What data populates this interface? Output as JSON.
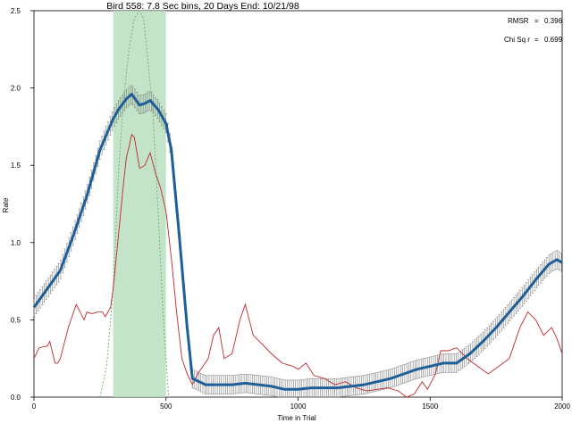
{
  "chart_data": {
    "type": "line",
    "title": "Bird 558: 7.8 Sec bins, 20 Days End: 10/21/98",
    "xlabel": "Time in Trial",
    "ylabel": "Rate",
    "xlim": [
      0,
      2000
    ],
    "ylim": [
      0,
      2.5
    ],
    "xticks": [
      0,
      500,
      1000,
      1500,
      2000
    ],
    "xtick_labels": [
      "0",
      "500",
      "1000",
      "1500",
      "2000"
    ],
    "yticks": [
      0.0,
      0.5,
      1.0,
      1.5,
      2.0,
      2.5
    ],
    "ytick_labels": [
      "0.0",
      "0.5",
      "1.0",
      "1.5",
      "2.0",
      "2.5"
    ],
    "shaded_region": {
      "x": [
        300,
        500
      ],
      "color": "#b8dfbe"
    },
    "stats": [
      {
        "label": "RMSR",
        "value": "0.396"
      },
      {
        "label": "Chi Sq r",
        "value": "0.699"
      }
    ],
    "series": [
      {
        "role": "mean",
        "color": "#1f5f99",
        "x": [
          0,
          50,
          100,
          150,
          200,
          250,
          300,
          320,
          350,
          370,
          400,
          420,
          440,
          470,
          500,
          520,
          550,
          580,
          600,
          650,
          700,
          750,
          800,
          850,
          900,
          950,
          1000,
          1050,
          1100,
          1150,
          1200,
          1250,
          1300,
          1350,
          1400,
          1450,
          1500,
          1550,
          1600,
          1650,
          1700,
          1750,
          1800,
          1850,
          1900,
          1950,
          1980,
          2000
        ],
        "y": [
          0.58,
          0.7,
          0.82,
          1.05,
          1.3,
          1.6,
          1.8,
          1.86,
          1.93,
          1.96,
          1.89,
          1.9,
          1.92,
          1.86,
          1.77,
          1.6,
          1.05,
          0.45,
          0.12,
          0.08,
          0.08,
          0.08,
          0.09,
          0.08,
          0.07,
          0.05,
          0.05,
          0.06,
          0.06,
          0.06,
          0.07,
          0.08,
          0.1,
          0.12,
          0.15,
          0.18,
          0.2,
          0.22,
          0.22,
          0.28,
          0.36,
          0.45,
          0.55,
          0.65,
          0.76,
          0.86,
          0.89,
          0.87
        ],
        "err": 0.06
      },
      {
        "role": "other",
        "color": "#c0272d",
        "x": [
          0,
          20,
          50,
          60,
          80,
          90,
          100,
          130,
          160,
          190,
          200,
          220,
          240,
          260,
          270,
          290,
          300,
          320,
          340,
          350,
          360,
          370,
          380,
          400,
          420,
          440,
          460,
          470,
          480,
          500,
          520,
          540,
          560,
          580,
          600,
          620,
          640,
          660,
          680,
          700,
          720,
          750,
          780,
          800,
          830,
          860,
          900,
          940,
          980,
          1000,
          1030,
          1060,
          1100,
          1140,
          1180,
          1220,
          1260,
          1300,
          1340,
          1380,
          1410,
          1440,
          1470,
          1490,
          1520,
          1540,
          1570,
          1600,
          1640,
          1680,
          1720,
          1760,
          1800,
          1840,
          1870,
          1900,
          1930,
          1960,
          1980,
          2000
        ],
        "y": [
          0.25,
          0.32,
          0.33,
          0.36,
          0.22,
          0.22,
          0.25,
          0.45,
          0.6,
          0.5,
          0.55,
          0.54,
          0.55,
          0.55,
          0.52,
          0.58,
          0.7,
          1.05,
          1.4,
          1.55,
          1.62,
          1.7,
          1.68,
          1.48,
          1.5,
          1.58,
          1.45,
          1.4,
          1.35,
          1.2,
          0.9,
          0.55,
          0.25,
          0.15,
          0.08,
          0.15,
          0.2,
          0.25,
          0.4,
          0.45,
          0.25,
          0.28,
          0.5,
          0.6,
          0.4,
          0.35,
          0.28,
          0.22,
          0.2,
          0.18,
          0.22,
          0.14,
          0.12,
          0.08,
          0.1,
          0.06,
          0.04,
          0.05,
          0.06,
          0.04,
          -0.05,
          0.02,
          0.1,
          0.05,
          0.15,
          0.3,
          0.3,
          0.32,
          0.25,
          0.2,
          0.15,
          0.2,
          0.25,
          0.45,
          0.55,
          0.5,
          0.4,
          0.45,
          0.38,
          0.28
        ]
      },
      {
        "role": "model",
        "color": "#7bb07e",
        "dashed": true,
        "x": [
          250,
          275,
          300,
          320,
          340,
          360,
          380,
          400,
          415,
          430,
          450,
          470,
          490,
          510
        ],
        "y": [
          0.0,
          0.2,
          0.7,
          1.45,
          1.95,
          2.25,
          2.45,
          2.6,
          2.45,
          2.2,
          1.85,
          1.2,
          0.5,
          0.0
        ]
      }
    ]
  }
}
